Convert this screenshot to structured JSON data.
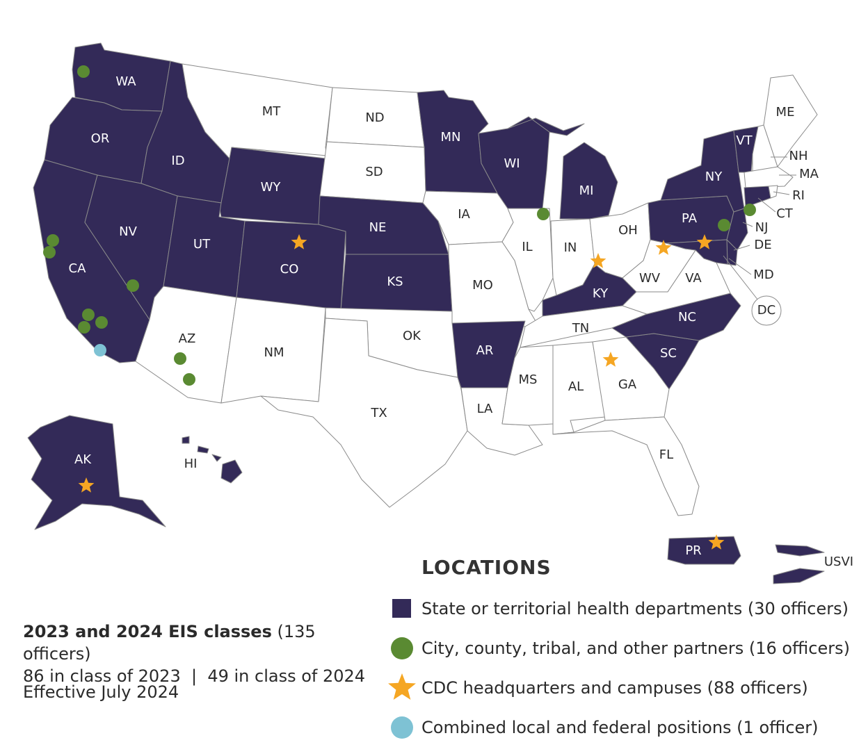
{
  "legend": {
    "title": "LOCATIONS",
    "items": [
      {
        "symbol": "square",
        "color": "#332a58",
        "label": "State or territorial health departments (30 officers)"
      },
      {
        "symbol": "circle",
        "color": "#5a8a32",
        "label": "City, county, tribal, and other partners (16 officers)"
      },
      {
        "symbol": "star",
        "color": "#f5a623",
        "label": "CDC headquarters and campuses (88 officers)"
      },
      {
        "symbol": "circle",
        "color": "#7ec2d4",
        "label": "Combined local and federal positions (1 officer)"
      }
    ]
  },
  "classes": {
    "heading_bold": "2023 and 2024 EIS classes",
    "heading_rest": " (135 officers)",
    "line2": "86 in class of 2023  |  49 in class of 2024"
  },
  "effective": "Effective July 2024",
  "states": {
    "highlighted": [
      "WA",
      "OR",
      "ID",
      "WY",
      "CA",
      "NV",
      "UT",
      "CO",
      "NE",
      "KS",
      "MN",
      "WI",
      "MI",
      "AR",
      "KY",
      "NC",
      "SC",
      "PA",
      "NY",
      "VT",
      "NJ",
      "MD",
      "DE",
      "CT",
      "AK",
      "PR",
      "USVI"
    ],
    "labels": {
      "WA": "WA",
      "OR": "OR",
      "CA": "CA",
      "ID": "ID",
      "NV": "NV",
      "MT": "MT",
      "WY": "WY",
      "UT": "UT",
      "AZ": "AZ",
      "CO": "CO",
      "NM": "NM",
      "ND": "ND",
      "SD": "SD",
      "NE": "NE",
      "KS": "KS",
      "OK": "OK",
      "TX": "TX",
      "MN": "MN",
      "IA": "IA",
      "MO": "MO",
      "AR": "AR",
      "LA": "LA",
      "WI": "WI",
      "IL": "IL",
      "MI": "MI",
      "IN": "IN",
      "OH": "OH",
      "KY": "KY",
      "TN": "TN",
      "MS": "MS",
      "AL": "AL",
      "GA": "GA",
      "FL": "FL",
      "SC": "SC",
      "NC": "NC",
      "VA": "VA",
      "WV": "WV",
      "PA": "PA",
      "NY": "NY",
      "VT": "VT",
      "NH": "NH",
      "ME": "ME",
      "MA": "MA",
      "RI": "RI",
      "CT": "CT",
      "NJ": "NJ",
      "DE": "DE",
      "MD": "MD",
      "DC": "DC",
      "AK": "AK",
      "HI": "HI",
      "PR": "PR",
      "USVI": "USVI"
    }
  }
}
